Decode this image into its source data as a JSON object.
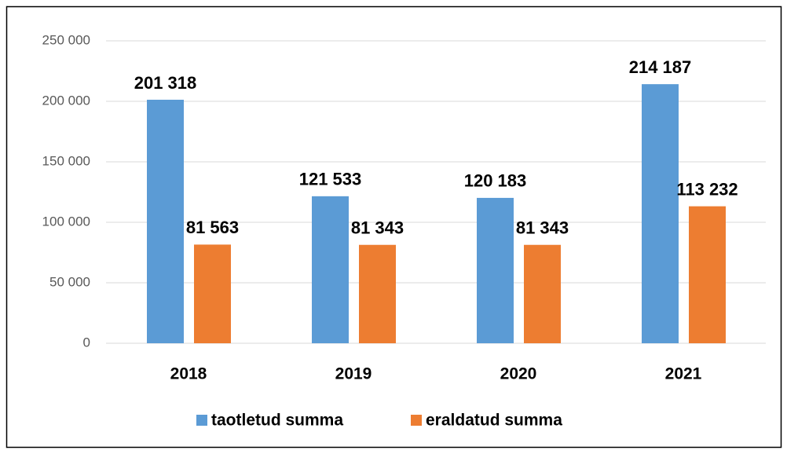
{
  "chart_data": {
    "type": "bar",
    "categories": [
      "2018",
      "2019",
      "2020",
      "2021"
    ],
    "series": [
      {
        "name": "taotletud summa",
        "color": "#5b9bd5",
        "values": [
          201318,
          121533,
          120183,
          214187
        ],
        "value_labels": [
          "201 318",
          "121 533",
          "120 183",
          "214 187"
        ]
      },
      {
        "name": "eraldatud summa",
        "color": "#ed7d31",
        "values": [
          81563,
          81343,
          81343,
          113232
        ],
        "value_labels": [
          "81 563",
          "81 343",
          "81 343",
          "113 232"
        ]
      }
    ],
    "ylim": [
      0,
      250000
    ],
    "yticks": [
      0,
      {
        "value": 50000,
        "label": "50 000"
      },
      {
        "value": 100000,
        "label": "100 000"
      },
      {
        "value": 150000,
        "label": "150 000"
      },
      {
        "value": 200000,
        "label": "200 000"
      },
      {
        "value": 250000,
        "label": "250 000"
      }
    ],
    "grid": true,
    "legend": "bottom"
  }
}
